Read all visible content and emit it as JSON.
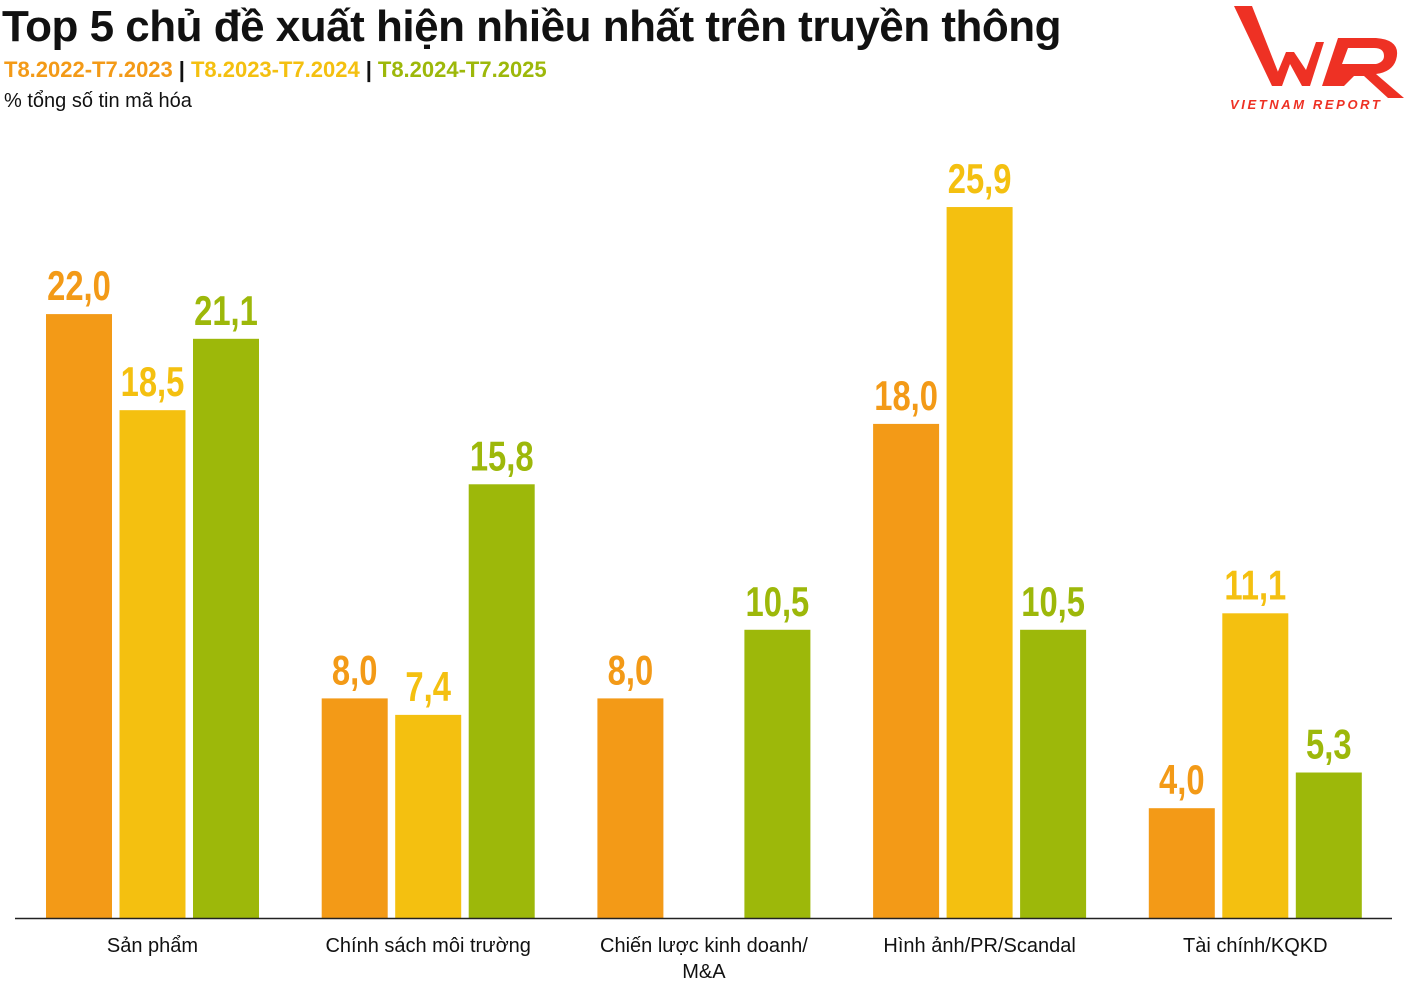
{
  "title": "Top 5 chủ đề xuất hiện nhiều nhất trên truyền thông",
  "logo": {
    "text": "VNR",
    "tagline": "VIETNAM REPORT",
    "color": "#EE3124"
  },
  "chart_data": {
    "type": "bar",
    "title": "Top 5 chủ đề xuất hiện nhiều nhất trên truyền thông",
    "ylabel": "% tổng số tin mã hóa",
    "xlabel": "",
    "categories": [
      "Sản phẩm",
      "Chính sách môi trường",
      "Chiến lược kinh doanh/\nM&A",
      "Hình ảnh/PR/Scandal",
      "Tài chính/KQKD"
    ],
    "series": [
      {
        "name": "T8.2022-T7.2023",
        "color": "#F39A17",
        "values": [
          22.0,
          8.0,
          8.0,
          18.0,
          4.0
        ],
        "labels": [
          "22,0",
          "8,0",
          "8,0",
          "18,0",
          "4,0"
        ]
      },
      {
        "name": "T8.2023-T7.2024",
        "color": "#F4C010",
        "values": [
          18.5,
          7.4,
          null,
          25.9,
          11.1
        ],
        "labels": [
          "18,5",
          "7,4",
          "",
          "25,9",
          "11,1"
        ]
      },
      {
        "name": "T8.2024-T7.2025",
        "color": "#9DB80A",
        "values": [
          21.1,
          15.8,
          10.5,
          10.5,
          5.3
        ],
        "labels": [
          "21,1",
          "15,8",
          "10,5",
          "10,5",
          "5,3"
        ]
      }
    ],
    "ylim": [
      0,
      28
    ],
    "grid": false,
    "legend": "top-left"
  }
}
